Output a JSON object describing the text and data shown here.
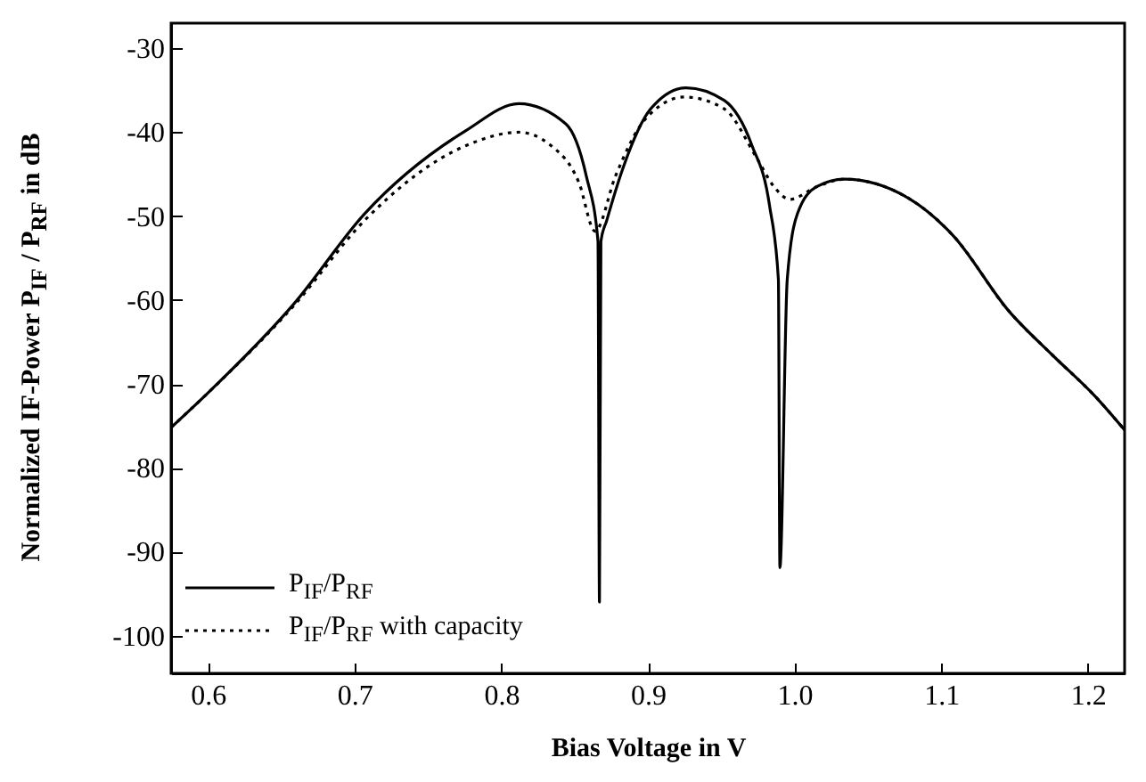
{
  "chart_data": {
    "type": "line",
    "xlabel": "Bias Voltage in V",
    "ylabel": "Normalized IF-Power P$_{IF}$ / P$_{RF}$ in dB",
    "xlim": [
      0.575,
      1.225
    ],
    "ylim": [
      -104.5,
      -27
    ],
    "xticks": [
      0.6,
      0.7,
      0.8,
      0.9,
      {
        "value": 1,
        "label": "1.0"
      },
      1.1,
      1.2
    ],
    "yticks": [
      -30,
      -40,
      -50,
      -60,
      -70,
      -80,
      -90,
      -100
    ],
    "grid": false,
    "legend": "bottom left",
    "series": [
      {
        "name": "P$_{IF}$/P$_{RF}$",
        "color": "#000000",
        "line_style": "solid",
        "x": [
          0.575,
          0.6,
          0.659,
          0.707,
          0.776,
          0.812,
          0.844,
          0.858,
          0.866,
          0.867,
          0.868,
          0.872,
          0.883,
          0.902,
          0.926,
          0.952,
          0.971,
          0.983,
          0.989,
          0.99,
          0.995,
          1.002,
          1.015,
          1.034,
          1.078,
          1.108,
          1.146,
          1.176,
          1.205,
          1.225
        ],
        "values": [
          -75.2,
          -71.1,
          -60.4,
          -49.7,
          -39.8,
          -36.6,
          -39,
          -45.2,
          -53,
          -96,
          -53,
          -50.5,
          -44.3,
          -37.2,
          -34.7,
          -36.2,
          -41.6,
          -48.8,
          -57.6,
          -91.9,
          -57.6,
          -49.7,
          -46.5,
          -45.6,
          -47.9,
          -52.3,
          -61.3,
          -66.6,
          -71.5,
          -75.5
        ]
      },
      {
        "name": "P$_{IF}$/P$_{RF}$ with capacity",
        "color": "#000000",
        "line_style": "dotted",
        "x": [
          0.575,
          0.6,
          0.659,
          0.707,
          0.776,
          0.812,
          0.834,
          0.853,
          0.864,
          0.878,
          0.898,
          0.925,
          0.952,
          0.974,
          0.986,
          0.997,
          1.015,
          1.034,
          1.078,
          1.108,
          1.146,
          1.176,
          1.205,
          1.225
        ],
        "values": [
          -75.2,
          -71.1,
          -60.6,
          -50.5,
          -41.6,
          -40,
          -41.6,
          -46,
          -51.8,
          -45.2,
          -38.5,
          -35.8,
          -37.2,
          -43,
          -46.5,
          -48,
          -46.5,
          -45.6,
          -47.9,
          -52.3,
          -61.3,
          -66.6,
          -71.5,
          -75.5
        ]
      }
    ]
  }
}
